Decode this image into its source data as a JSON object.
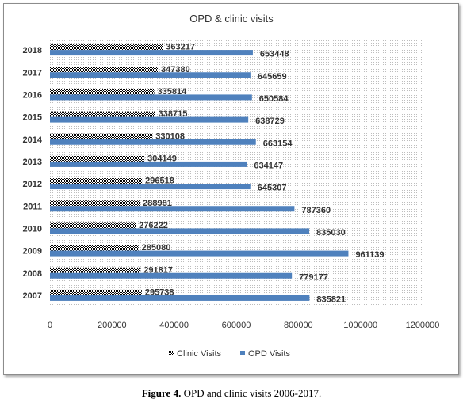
{
  "chart_data": {
    "type": "bar",
    "orientation": "horizontal",
    "title": "OPD & clinic visits",
    "categories": [
      "2007",
      "2008",
      "2009",
      "2010",
      "2011",
      "2012",
      "2013",
      "2014",
      "2015",
      "2016",
      "2017",
      "2018"
    ],
    "series": [
      {
        "name": "Clinic Visits",
        "values": [
          295738,
          291817,
          285080,
          276222,
          288981,
          296518,
          304149,
          330108,
          338715,
          335814,
          347380,
          363217
        ],
        "color": "#1a1a1a"
      },
      {
        "name": "OPD Visits",
        "values": [
          835821,
          779177,
          961139,
          835030,
          787360,
          645307,
          634147,
          663154,
          638729,
          650584,
          645659,
          653448
        ],
        "color": "#4f81bd"
      }
    ],
    "xlim": [
      0,
      1200000
    ],
    "xticks": [
      "0",
      "200000",
      "400000",
      "600000",
      "800000",
      "1000000",
      "1200000"
    ],
    "xtick_values": [
      0,
      200000,
      400000,
      600000,
      800000,
      1000000,
      1200000
    ],
    "data_labels": true,
    "grid": false,
    "legend": "bottom"
  },
  "caption": {
    "label": "Figure 4.",
    "text": " OPD and clinic visits 2006-2017."
  }
}
